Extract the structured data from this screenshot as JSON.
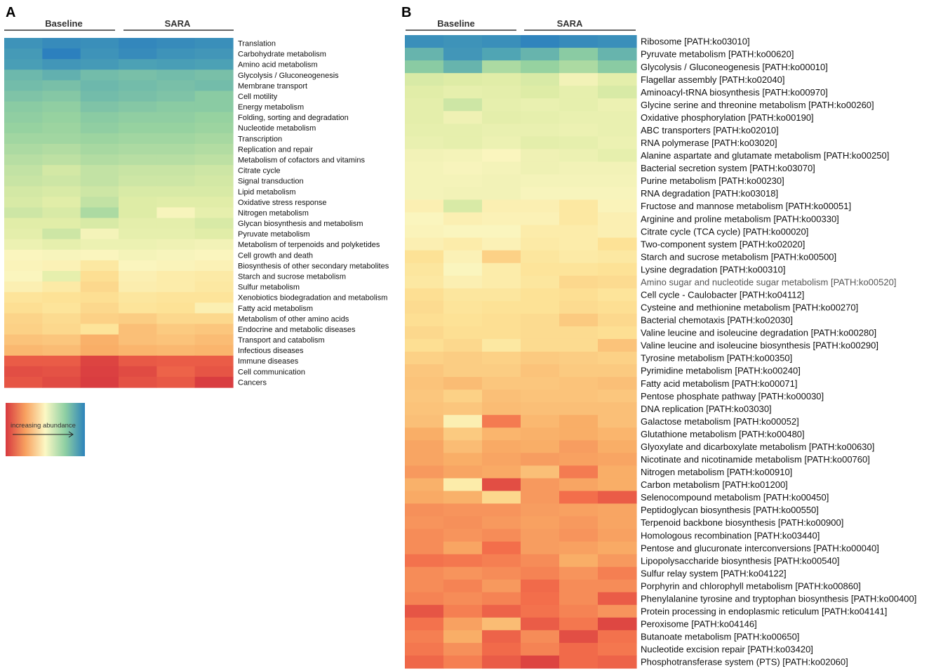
{
  "chart_data": [
    {
      "panel": "A",
      "type": "heatmap",
      "title": "",
      "groups": [
        {
          "label": "Baseline",
          "columns": 3
        },
        {
          "label": "SARA",
          "columns": 3
        }
      ],
      "value_scale": "relative abundance score (0 = lowest, 1 = highest)",
      "rows": [
        {
          "label": "Translation",
          "values": [
            0.95,
            0.97,
            0.96,
            0.98,
            0.97,
            0.96
          ]
        },
        {
          "label": "Carbohydrate metabolism",
          "values": [
            0.93,
            1.0,
            0.95,
            0.97,
            0.95,
            0.94
          ]
        },
        {
          "label": "Amino acid metabolism",
          "values": [
            0.92,
            0.94,
            0.93,
            0.91,
            0.92,
            0.91
          ]
        },
        {
          "label": "Glycolysis / Gluconeogenesis",
          "values": [
            0.85,
            0.87,
            0.84,
            0.83,
            0.84,
            0.83
          ]
        },
        {
          "label": "Membrane transport",
          "values": [
            0.84,
            0.83,
            0.85,
            0.84,
            0.83,
            0.84
          ]
        },
        {
          "label": "Cell motility",
          "values": [
            0.82,
            0.81,
            0.84,
            0.83,
            0.82,
            0.8
          ]
        },
        {
          "label": "Energy metabolism",
          "values": [
            0.8,
            0.79,
            0.82,
            0.81,
            0.8,
            0.8
          ]
        },
        {
          "label": "Folding, sorting and degradation",
          "values": [
            0.79,
            0.78,
            0.8,
            0.79,
            0.79,
            0.78
          ]
        },
        {
          "label": "Nucleotide metabolism",
          "values": [
            0.78,
            0.77,
            0.79,
            0.78,
            0.78,
            0.77
          ]
        },
        {
          "label": "Transcription",
          "values": [
            0.76,
            0.76,
            0.77,
            0.76,
            0.76,
            0.75
          ]
        },
        {
          "label": "Replication and repair",
          "values": [
            0.74,
            0.73,
            0.75,
            0.74,
            0.74,
            0.73
          ]
        },
        {
          "label": "Metabolism of cofactors and vitamins",
          "values": [
            0.72,
            0.71,
            0.73,
            0.72,
            0.72,
            0.71
          ]
        },
        {
          "label": "Citrate cycle",
          "values": [
            0.7,
            0.67,
            0.7,
            0.69,
            0.69,
            0.68
          ]
        },
        {
          "label": "Signal transduction",
          "values": [
            0.69,
            0.68,
            0.7,
            0.68,
            0.68,
            0.67
          ]
        },
        {
          "label": "Lipid metabolism",
          "values": [
            0.67,
            0.66,
            0.68,
            0.66,
            0.66,
            0.66
          ]
        },
        {
          "label": "Oxidative stress response",
          "values": [
            0.66,
            0.64,
            0.7,
            0.65,
            0.64,
            0.64
          ]
        },
        {
          "label": "Nitrogen metabolism",
          "values": [
            0.68,
            0.66,
            0.74,
            0.65,
            0.56,
            0.62
          ]
        },
        {
          "label": "Glycan biosynthesis and metabolism",
          "values": [
            0.64,
            0.64,
            0.66,
            0.63,
            0.63,
            0.66
          ]
        },
        {
          "label": "Pyruvate metabolism",
          "values": [
            0.63,
            0.68,
            0.57,
            0.62,
            0.62,
            0.64
          ]
        },
        {
          "label": "Metabolism of terpenoids and polyketides",
          "values": [
            0.6,
            0.62,
            0.6,
            0.6,
            0.59,
            0.58
          ]
        },
        {
          "label": "Cell growth and death",
          "values": [
            0.55,
            0.56,
            0.55,
            0.57,
            0.56,
            0.55
          ]
        },
        {
          "label": "Biosynthesis of other secondary metabolites",
          "values": [
            0.54,
            0.53,
            0.48,
            0.55,
            0.54,
            0.53
          ]
        },
        {
          "label": "Starch and sucrose metabolism",
          "values": [
            0.55,
            0.62,
            0.44,
            0.52,
            0.5,
            0.49
          ]
        },
        {
          "label": "Sulfur metabolism",
          "values": [
            0.52,
            0.49,
            0.42,
            0.51,
            0.5,
            0.48
          ]
        },
        {
          "label": "Xenobiotics biodegradation and metabolism",
          "values": [
            0.46,
            0.45,
            0.44,
            0.47,
            0.46,
            0.46
          ]
        },
        {
          "label": "Fatty acid metabolism",
          "values": [
            0.44,
            0.46,
            0.42,
            0.46,
            0.45,
            0.52
          ]
        },
        {
          "label": "Metabolism of other amino acids",
          "values": [
            0.41,
            0.43,
            0.4,
            0.39,
            0.42,
            0.42
          ]
        },
        {
          "label": "Endocrine and metabolic diseases",
          "values": [
            0.4,
            0.42,
            0.46,
            0.35,
            0.38,
            0.37
          ]
        },
        {
          "label": "Transport and catabolism",
          "values": [
            0.36,
            0.37,
            0.31,
            0.35,
            0.36,
            0.34
          ]
        },
        {
          "label": "Infectious diseases",
          "values": [
            0.33,
            0.34,
            0.3,
            0.32,
            0.33,
            0.32
          ]
        },
        {
          "label": "Immune diseases",
          "values": [
            0.1,
            0.1,
            0.03,
            0.09,
            0.1,
            0.1
          ]
        },
        {
          "label": "Cell communication",
          "values": [
            0.06,
            0.07,
            0.02,
            0.05,
            0.12,
            0.08
          ]
        },
        {
          "label": "Cancers",
          "values": [
            0.08,
            0.05,
            0.01,
            0.07,
            0.09,
            0.01
          ]
        }
      ],
      "legend": {
        "label": "increasing abundance",
        "low_color": "#d7393f",
        "high_color": "#2c83ba"
      }
    },
    {
      "panel": "B",
      "type": "heatmap",
      "title": "",
      "groups": [
        {
          "label": "Baseline",
          "columns": 3
        },
        {
          "label": "SARA",
          "columns": 3
        }
      ],
      "value_scale": "relative abundance score (0 = lowest, 1 = highest)",
      "rows": [
        {
          "label": "Ribosome [PATH:ko03010]",
          "values": [
            0.96,
            0.95,
            0.96,
            0.99,
            0.97,
            0.96
          ]
        },
        {
          "label": "Pyruvate metabolism [PATH:ko00620]",
          "values": [
            0.86,
            0.94,
            0.9,
            0.86,
            0.8,
            0.86
          ]
        },
        {
          "label": "Glycolysis / Gluconeogenesis [PATH:ko00010]",
          "values": [
            0.8,
            0.86,
            0.74,
            0.78,
            0.74,
            0.8
          ]
        },
        {
          "label": "Flagellar assembly [PATH:ko02040]",
          "values": [
            0.66,
            0.65,
            0.64,
            0.66,
            0.58,
            0.63
          ]
        },
        {
          "label": "Aminoacyl-tRNA biosynthesis [PATH:ko00970]",
          "values": [
            0.64,
            0.62,
            0.63,
            0.65,
            0.62,
            0.66
          ]
        },
        {
          "label": "Glycine serine and threonine metabolism [PATH:ko00260]",
          "values": [
            0.63,
            0.68,
            0.62,
            0.61,
            0.62,
            0.6
          ]
        },
        {
          "label": "Oxidative phosphorylation [PATH:ko00190]",
          "values": [
            0.63,
            0.59,
            0.63,
            0.62,
            0.61,
            0.61
          ]
        },
        {
          "label": "ABC transporters [PATH:ko02010]",
          "values": [
            0.62,
            0.62,
            0.61,
            0.61,
            0.6,
            0.61
          ]
        },
        {
          "label": "RNA polymerase [PATH:ko03020]",
          "values": [
            0.61,
            0.62,
            0.6,
            0.63,
            0.62,
            0.6
          ]
        },
        {
          "label": "Alanine aspartate and glutamate metabolism [PATH:ko00250]",
          "values": [
            0.58,
            0.57,
            0.55,
            0.59,
            0.6,
            0.62
          ]
        },
        {
          "label": "Bacterial secretion system [PATH:ko03070]",
          "values": [
            0.57,
            0.56,
            0.57,
            0.59,
            0.58,
            0.58
          ]
        },
        {
          "label": "Purine metabolism [PATH:ko00230]",
          "values": [
            0.57,
            0.57,
            0.58,
            0.57,
            0.57,
            0.57
          ]
        },
        {
          "label": "RNA degradation [PATH:ko03018]",
          "values": [
            0.57,
            0.58,
            0.58,
            0.56,
            0.56,
            0.56
          ]
        },
        {
          "label": "Fructose and mannose metabolism [PATH:ko00051]",
          "values": [
            0.52,
            0.66,
            0.52,
            0.52,
            0.48,
            0.54
          ]
        },
        {
          "label": "Arginine and proline metabolism [PATH:ko00330]",
          "values": [
            0.55,
            0.52,
            0.53,
            0.53,
            0.48,
            0.52
          ]
        },
        {
          "label": "Citrate cycle (TCA cycle) [PATH:ko00020]",
          "values": [
            0.54,
            0.55,
            0.55,
            0.5,
            0.5,
            0.52
          ]
        },
        {
          "label": "Two-component system [PATH:ko02020]",
          "values": [
            0.52,
            0.5,
            0.53,
            0.49,
            0.5,
            0.45
          ]
        },
        {
          "label": "Starch and sucrose metabolism [PATH:ko00500]",
          "values": [
            0.45,
            0.53,
            0.4,
            0.47,
            0.49,
            0.48
          ]
        },
        {
          "label": "Lysine degradation [PATH:ko00310]",
          "values": [
            0.47,
            0.55,
            0.5,
            0.46,
            0.46,
            0.45
          ]
        },
        {
          "label": "Amino sugar and nucleotide sugar metabolism [PATH:ko00520]",
          "values": [
            0.48,
            0.52,
            0.5,
            0.47,
            0.42,
            0.43
          ]
        },
        {
          "label": "Cell cycle - Caulobacter [PATH:ko04112]",
          "values": [
            0.44,
            0.47,
            0.47,
            0.45,
            0.44,
            0.46
          ]
        },
        {
          "label": "Cysteine and methionine metabolism [PATH:ko00270]",
          "values": [
            0.43,
            0.46,
            0.45,
            0.45,
            0.43,
            0.44
          ]
        },
        {
          "label": "Bacterial chemotaxis [PATH:ko02030]",
          "values": [
            0.44,
            0.45,
            0.44,
            0.43,
            0.38,
            0.42
          ]
        },
        {
          "label": "Valine leucine and isoleucine degradation [PATH:ko00280]",
          "values": [
            0.42,
            0.44,
            0.44,
            0.43,
            0.43,
            0.44
          ]
        },
        {
          "label": "Valine leucine and isoleucine biosynthesis [PATH:ko00290]",
          "values": [
            0.44,
            0.42,
            0.48,
            0.43,
            0.43,
            0.36
          ]
        },
        {
          "label": "Tyrosine metabolism [PATH:ko00350]",
          "values": [
            0.4,
            0.39,
            0.4,
            0.38,
            0.39,
            0.4
          ]
        },
        {
          "label": "Pyrimidine metabolism [PATH:ko00240]",
          "values": [
            0.37,
            0.39,
            0.39,
            0.36,
            0.38,
            0.38
          ]
        },
        {
          "label": "Fatty acid metabolism [PATH:ko00071]",
          "values": [
            0.36,
            0.34,
            0.37,
            0.37,
            0.36,
            0.35
          ]
        },
        {
          "label": "Pentose phosphate pathway [PATH:ko00030]",
          "values": [
            0.37,
            0.4,
            0.35,
            0.36,
            0.36,
            0.37
          ]
        },
        {
          "label": "DNA replication [PATH:ko03030]",
          "values": [
            0.36,
            0.37,
            0.34,
            0.35,
            0.35,
            0.35
          ]
        },
        {
          "label": "Galactose metabolism [PATH:ko00052]",
          "values": [
            0.35,
            0.52,
            0.18,
            0.33,
            0.3,
            0.35
          ]
        },
        {
          "label": "Glutathione metabolism [PATH:ko00480]",
          "values": [
            0.3,
            0.38,
            0.32,
            0.31,
            0.3,
            0.32
          ]
        },
        {
          "label": "Glyoxylate and dicarboxylate metabolism [PATH:ko00630]",
          "values": [
            0.28,
            0.34,
            0.29,
            0.3,
            0.26,
            0.3
          ]
        },
        {
          "label": "Nicotinate and nicotinamide metabolism [PATH:ko00760]",
          "values": [
            0.28,
            0.3,
            0.28,
            0.26,
            0.27,
            0.28
          ]
        },
        {
          "label": "Nitrogen metabolism [PATH:ko00910]",
          "values": [
            0.25,
            0.28,
            0.29,
            0.35,
            0.18,
            0.3
          ]
        },
        {
          "label": "Carbon metabolism [PATH:ko01200]",
          "values": [
            0.31,
            0.5,
            0.06,
            0.25,
            0.28,
            0.3
          ]
        },
        {
          "label": "Selenocompound metabolism [PATH:ko00450]",
          "values": [
            0.29,
            0.31,
            0.42,
            0.25,
            0.15,
            0.1
          ]
        },
        {
          "label": "Peptidoglycan biosynthesis [PATH:ko00550]",
          "values": [
            0.23,
            0.24,
            0.24,
            0.26,
            0.27,
            0.28
          ]
        },
        {
          "label": "Terpenoid backbone biosynthesis [PATH:ko00900]",
          "values": [
            0.24,
            0.23,
            0.25,
            0.27,
            0.25,
            0.28
          ]
        },
        {
          "label": "Homologous recombination [PATH:ko03440]",
          "values": [
            0.22,
            0.24,
            0.22,
            0.26,
            0.24,
            0.27
          ]
        },
        {
          "label": "Pentose and glucuronate interconversions [PATH:ko00040]",
          "values": [
            0.22,
            0.28,
            0.15,
            0.26,
            0.27,
            0.29
          ]
        },
        {
          "label": "Lipopolysaccharide biosynthesis [PATH:ko00540]",
          "values": [
            0.16,
            0.17,
            0.19,
            0.22,
            0.3,
            0.25
          ]
        },
        {
          "label": "Sulfur relay system [PATH:ko04122]",
          "values": [
            0.22,
            0.24,
            0.22,
            0.2,
            0.24,
            0.19
          ]
        },
        {
          "label": "Porphyrin and chlorophyll metabolism [PATH:ko00860]",
          "values": [
            0.22,
            0.2,
            0.25,
            0.14,
            0.22,
            0.22
          ]
        },
        {
          "label": "Phenylalanine tyrosine and tryptophan biosynthesis [PATH:ko00400]",
          "values": [
            0.2,
            0.22,
            0.2,
            0.15,
            0.22,
            0.1
          ]
        },
        {
          "label": "Protein processing in endoplasmic reticulum [PATH:ko04141]",
          "values": [
            0.08,
            0.19,
            0.12,
            0.16,
            0.2,
            0.24
          ]
        },
        {
          "label": "Peroxisome [PATH:ko04146]",
          "values": [
            0.16,
            0.27,
            0.34,
            0.1,
            0.17,
            0.04
          ]
        },
        {
          "label": "Butanoate metabolism [PATH:ko00650]",
          "values": [
            0.19,
            0.3,
            0.12,
            0.22,
            0.06,
            0.16
          ]
        },
        {
          "label": "Nucleotide excision repair [PATH:ko03420]",
          "values": [
            0.17,
            0.23,
            0.14,
            0.2,
            0.14,
            0.17
          ]
        },
        {
          "label": "Phosphotransferase system (PTS) [PATH:ko02060]",
          "values": [
            0.13,
            0.19,
            0.1,
            0.03,
            0.14,
            0.12
          ]
        }
      ]
    }
  ]
}
